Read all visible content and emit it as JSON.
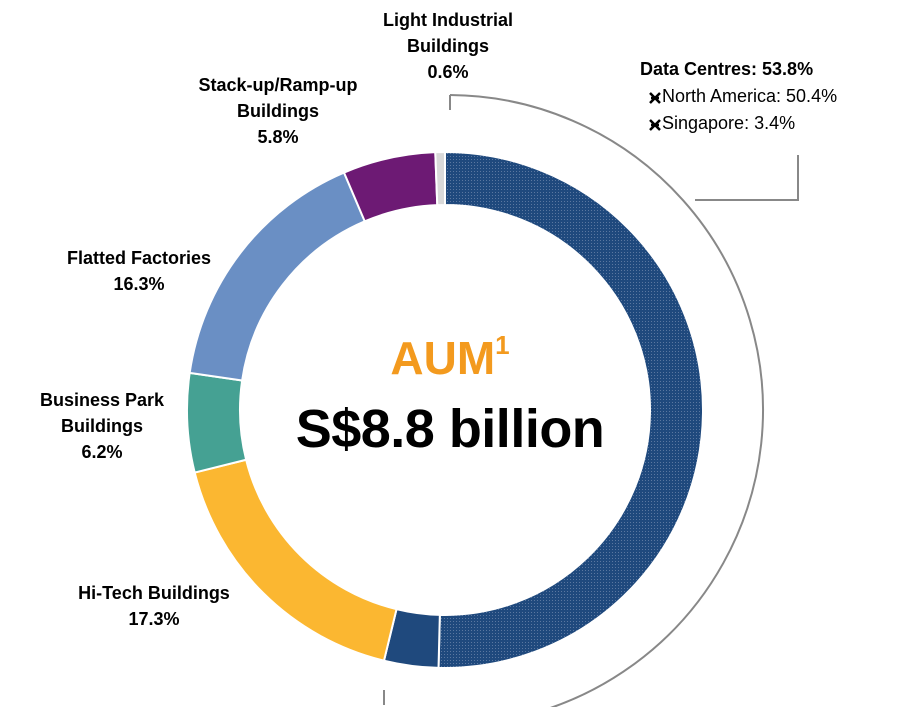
{
  "chart_data": {
    "type": "donut",
    "categories": [
      null,
      null,
      "Hi-Tech Buildings",
      "Business Park Buildings",
      "Flatted Factories",
      "Stack-up/Ramp-up Buildings",
      "Light Industrial Buildings"
    ],
    "values": [
      50.4,
      3.4,
      17.3,
      6.2,
      16.3,
      5.8,
      0.6
    ],
    "value_labels": [
      null,
      null,
      "17.3%",
      "6.2%",
      "16.3%",
      "5.8%",
      "0.6%"
    ],
    "colors": [
      "#1F497D",
      "#1F497D",
      "#FBB731",
      "#45A193",
      "#6A8FC4",
      "#6D1A74",
      "#D9D9D9"
    ],
    "center_title": "AUM",
    "center_title_note": "1",
    "center_value": "S$8.8 billion",
    "callout": {
      "title": "Data Centres: 53.8%",
      "items": [
        "North America: 50.4%",
        "Singapore: 3.4%"
      ]
    }
  }
}
